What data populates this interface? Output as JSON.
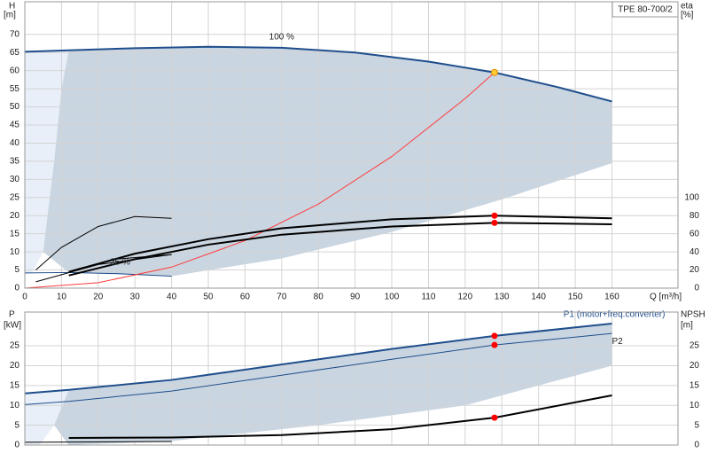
{
  "chart_data": [
    {
      "type": "line",
      "title": "TPE 80-700/2",
      "x_label": "Q [m³/h]",
      "y_label": "H",
      "y_unit": "[m]",
      "y2_label": "eta",
      "y2_unit": "[%]",
      "xlim": [
        0,
        178
      ],
      "xticks": [
        0,
        10,
        20,
        30,
        40,
        50,
        60,
        70,
        80,
        90,
        100,
        110,
        120,
        130,
        140,
        150,
        160
      ],
      "ylim": [
        0,
        79
      ],
      "yticks": [
        0,
        5,
        10,
        15,
        20,
        25,
        30,
        35,
        40,
        45,
        50,
        55,
        60,
        65,
        70
      ],
      "y2lim": [
        0,
        316
      ],
      "y2ticks": [
        0,
        20,
        40,
        60,
        80,
        100
      ],
      "grid": true,
      "xtick_labels": true,
      "areas": [
        {
          "color": "#e8eff8",
          "x": [
            0,
            12,
            10,
            8,
            5,
            2,
            0
          ],
          "values": [
            65.2,
            65.6,
            55,
            35,
            10,
            4.2,
            4.2
          ]
        },
        {
          "color": "#c9d5e1",
          "x": [
            12,
            30,
            50,
            70,
            90,
            110,
            128,
            145,
            160,
            160,
            130,
            100,
            70,
            40,
            12,
            5,
            8,
            10
          ],
          "values": [
            65.6,
            66.2,
            66.6,
            66.3,
            65,
            62.5,
            59.5,
            55.5,
            51.5,
            34.5,
            24.5,
            15.5,
            8.2,
            3.3,
            4.3,
            10,
            35,
            55
          ]
        }
      ],
      "series": [
        {
          "name": "100 %",
          "color": "#1f4e8c",
          "width": 2,
          "x": [
            0,
            12,
            30,
            50,
            70,
            90,
            110,
            128,
            145,
            160
          ],
          "values": [
            65.2,
            65.6,
            66.2,
            66.6,
            66.3,
            65,
            62.5,
            59.5,
            55.5,
            51.5
          ]
        },
        {
          "name": "25 %",
          "color": "#1f4e8c",
          "width": 1,
          "x": [
            0,
            12,
            25,
            40
          ],
          "values": [
            4.2,
            4.3,
            4,
            3.3
          ]
        },
        {
          "color": "#ff3b3b",
          "width": 1,
          "x": [
            0,
            20,
            40,
            60,
            80,
            100,
            120,
            128
          ],
          "values": [
            0,
            1.5,
            5.8,
            13.1,
            23.2,
            36.3,
            52.3,
            59.5
          ]
        },
        {
          "color": "#000000",
          "width": 2,
          "axis": "y2",
          "x": [
            12,
            30,
            50,
            70,
            100,
            128,
            160
          ],
          "values": [
            18,
            38,
            54,
            66,
            76,
            80,
            77
          ]
        },
        {
          "color": "#000000",
          "width": 2,
          "axis": "y2",
          "x": [
            12,
            30,
            50,
            70,
            100,
            128,
            160
          ],
          "values": [
            14,
            32,
            48,
            59,
            68,
            72,
            70.5
          ]
        },
        {
          "color": "#000000",
          "width": 1,
          "axis": "y2",
          "x": [
            3,
            10,
            20,
            30,
            40
          ],
          "values": [
            20,
            45,
            68,
            79,
            77
          ]
        },
        {
          "color": "#000000",
          "width": 1,
          "axis": "y2",
          "x": [
            3,
            20,
            40
          ],
          "values": [
            7,
            26,
            37
          ]
        },
        {
          "color": "#000000",
          "width": 1,
          "axis": "y2",
          "x": [
            12,
            25,
            40
          ],
          "values": [
            18,
            32,
            37
          ]
        }
      ],
      "points": [
        {
          "x": 128,
          "value": 59.5,
          "color": "#ffcc33",
          "axis": "y"
        },
        {
          "x": 128,
          "value": 80,
          "color": "#ff0000",
          "axis": "y2"
        },
        {
          "x": 128,
          "value": 72,
          "color": "#ff0000",
          "axis": "y2"
        }
      ]
    },
    {
      "type": "line",
      "y_label": "P",
      "y_unit": "[kW]",
      "y2_label": "NPSH",
      "y2_unit": "[m]",
      "xlim": [
        0,
        178
      ],
      "xticks": [
        0,
        10,
        20,
        30,
        40,
        50,
        60,
        70,
        80,
        90,
        100,
        110,
        120,
        130,
        140,
        150,
        160
      ],
      "ylim": [
        0,
        33.5
      ],
      "yticks": [
        0,
        5,
        10,
        15,
        20,
        25
      ],
      "y2lim": [
        0,
        33.5
      ],
      "y2ticks": [
        0,
        5,
        10,
        15,
        20,
        25
      ],
      "grid": true,
      "xtick_labels": false,
      "areas": [
        {
          "color": "#e8eff8",
          "x": [
            0,
            12,
            8,
            4,
            0
          ],
          "values": [
            13,
            13.9,
            5,
            0,
            0
          ]
        },
        {
          "color": "#c9d5e1",
          "x": [
            12,
            40,
            70,
            100,
            128,
            160,
            160,
            120,
            80,
            40,
            12,
            8
          ],
          "values": [
            13.9,
            16.4,
            20.3,
            24.2,
            27.5,
            30.6,
            20,
            10,
            5,
            1,
            0,
            5
          ]
        }
      ],
      "series": [
        {
          "name": "P1 (motor+freq.converter)",
          "color": "#1f4e8c",
          "width": 2,
          "x": [
            0,
            12,
            40,
            70,
            100,
            128,
            160
          ],
          "values": [
            13,
            13.9,
            16.4,
            20.3,
            24.2,
            27.5,
            30.6
          ]
        },
        {
          "name": "P2",
          "color": "#1f4e8c",
          "width": 1,
          "x": [
            0,
            12,
            40,
            70,
            100,
            128,
            160
          ],
          "values": [
            10.2,
            11,
            13.6,
            17.6,
            21.6,
            25.2,
            28.1
          ]
        },
        {
          "color": "#000000",
          "width": 2,
          "axis": "y2",
          "x": [
            12,
            40,
            70,
            100,
            128,
            160
          ],
          "values": [
            1.8,
            1.9,
            2.5,
            4,
            6.9,
            12.5
          ]
        },
        {
          "color": "#000000",
          "width": 1,
          "x": [
            0,
            40
          ],
          "values": [
            0.7,
            0.9
          ]
        }
      ],
      "points": [
        {
          "x": 128,
          "value": 27.5,
          "color": "#ff0000",
          "axis": "y"
        },
        {
          "x": 128,
          "value": 25.2,
          "color": "#ff0000",
          "axis": "y"
        },
        {
          "x": 128,
          "value": 6.9,
          "color": "#ff0000",
          "axis": "y2"
        }
      ]
    }
  ]
}
